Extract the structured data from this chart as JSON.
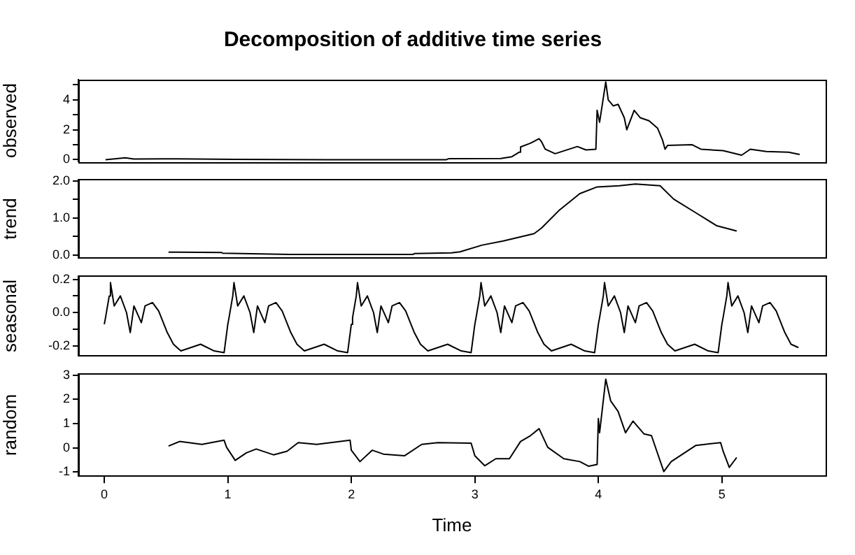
{
  "chart_data": [
    {
      "type": "line",
      "title": "Decomposition of additive time series",
      "ylabel": "observed",
      "tick_labels": "y",
      "xlim": [
        -0.21,
        5.84
      ],
      "xticks": [
        0,
        1,
        2,
        3,
        4,
        5
      ],
      "ylim": [
        -0.13,
        5.35
      ],
      "yticks": [
        0,
        {
          "value": 1,
          "label": null
        },
        2,
        {
          "value": 3,
          "label": null
        },
        4,
        {
          "value": 5,
          "label": null
        }
      ],
      "series": [
        {
          "color": "#000000",
          "x": [
            0.01,
            0.17,
            0.24,
            0.48,
            1.06,
            1.81,
            2.77,
            2.79,
            3.21,
            3.3,
            3.36,
            3.37,
            3.45,
            3.52,
            3.54,
            3.57,
            3.65,
            3.83,
            3.9,
            3.98,
            3.99,
            4.01,
            4.06,
            4.08,
            4.12,
            4.16,
            4.21,
            4.23,
            4.29,
            4.34,
            4.41,
            4.48,
            4.52,
            4.54,
            4.56,
            4.76,
            4.83,
            5.01,
            5.16,
            5.23,
            5.36,
            5.54,
            5.63
          ],
          "values": [
            0.0,
            0.12,
            0.04,
            0.06,
            0.02,
            0.0,
            0.0,
            0.07,
            0.08,
            0.2,
            0.5,
            0.85,
            1.1,
            1.4,
            1.2,
            0.7,
            0.4,
            0.88,
            0.65,
            0.7,
            3.3,
            2.5,
            5.2,
            4.0,
            3.6,
            3.7,
            2.8,
            2.0,
            3.3,
            2.8,
            2.6,
            2.1,
            1.3,
            0.7,
            0.95,
            1.0,
            0.7,
            0.6,
            0.3,
            0.7,
            0.55,
            0.5,
            0.35
          ]
        }
      ]
    },
    {
      "type": "line",
      "ylabel": "trend",
      "tick_labels": "y",
      "xlim": [
        -0.21,
        5.84
      ],
      "xticks": [
        0,
        1,
        2,
        3,
        4,
        5
      ],
      "ylim": [
        -0.08,
        2.04
      ],
      "yticks": [
        {
          "value": 0,
          "label": "0.0"
        },
        {
          "value": 0.5,
          "label": null
        },
        {
          "value": 1,
          "label": "1.0"
        },
        {
          "value": 1.5,
          "label": null
        },
        {
          "value": 2,
          "label": "2.0"
        }
      ],
      "series": [
        {
          "color": "#000000",
          "x": [
            0.52,
            0.95,
            0.96,
            1.5,
            2.5,
            2.51,
            2.81,
            2.88,
            3.06,
            3.23,
            3.48,
            3.54,
            3.68,
            3.85,
            3.99,
            4.17,
            4.3,
            4.5,
            4.61,
            4.79,
            4.96,
            5.12
          ],
          "values": [
            0.08,
            0.07,
            0.05,
            0.02,
            0.02,
            0.04,
            0.06,
            0.09,
            0.27,
            0.38,
            0.58,
            0.73,
            1.2,
            1.66,
            1.84,
            1.87,
            1.92,
            1.87,
            1.51,
            1.14,
            0.79,
            0.65
          ]
        }
      ]
    },
    {
      "type": "line",
      "ylabel": "seasonal",
      "tick_labels": "y",
      "xlim": [
        -0.21,
        5.84
      ],
      "xticks": [
        0,
        1,
        2,
        3,
        4,
        5
      ],
      "ylim": [
        -0.26,
        0.22
      ],
      "yticks": [
        {
          "value": -0.2,
          "label": "-0.2"
        },
        {
          "value": -0.1,
          "label": null
        },
        {
          "value": 0,
          "label": "0.0"
        },
        {
          "value": 0.1,
          "label": null
        },
        {
          "value": 0.2,
          "label": "0.2"
        }
      ],
      "series": [
        {
          "color": "#000000",
          "x": [
            0,
            0.01,
            0.04,
            0.05,
            0.08,
            0.13,
            0.18,
            0.21,
            0.24,
            0.3,
            0.33,
            0.39,
            0.44,
            0.51,
            0.56,
            0.62,
            0.78,
            0.89,
            0.97,
            1,
            1.01,
            1.04,
            1.05,
            1.08,
            1.13,
            1.18,
            1.21,
            1.24,
            1.3,
            1.33,
            1.39,
            1.44,
            1.51,
            1.56,
            1.62,
            1.78,
            1.89,
            1.97,
            2,
            2.01,
            2.04,
            2.05,
            2.08,
            2.13,
            2.18,
            2.21,
            2.24,
            2.3,
            2.33,
            2.39,
            2.44,
            2.51,
            2.56,
            2.62,
            2.78,
            2.89,
            2.97,
            3,
            3.01,
            3.04,
            3.05,
            3.08,
            3.13,
            3.18,
            3.21,
            3.24,
            3.3,
            3.33,
            3.39,
            3.44,
            3.51,
            3.56,
            3.62,
            3.78,
            3.89,
            3.97,
            4,
            4.01,
            4.04,
            4.05,
            4.08,
            4.13,
            4.18,
            4.21,
            4.24,
            4.3,
            4.33,
            4.39,
            4.44,
            4.51,
            4.56,
            4.62,
            4.78,
            4.89,
            4.97,
            5,
            5.01,
            5.04,
            5.05,
            5.08,
            5.13,
            5.18,
            5.21,
            5.24,
            5.3,
            5.33,
            5.39,
            5.44,
            5.51,
            5.56,
            5.62
          ],
          "values": [
            -0.07,
            -0.03,
            0.1,
            0.18,
            0.04,
            0.1,
            0.0,
            -0.12,
            0.04,
            -0.06,
            0.04,
            0.06,
            0.01,
            -0.12,
            -0.19,
            -0.23,
            -0.19,
            -0.23,
            -0.24,
            -0.07,
            -0.03,
            0.1,
            0.18,
            0.04,
            0.1,
            0.0,
            -0.12,
            0.04,
            -0.06,
            0.04,
            0.06,
            0.01,
            -0.12,
            -0.19,
            -0.23,
            -0.19,
            -0.23,
            -0.24,
            -0.07,
            -0.03,
            0.1,
            0.18,
            0.04,
            0.1,
            0.0,
            -0.12,
            0.04,
            -0.06,
            0.04,
            0.06,
            0.01,
            -0.12,
            -0.19,
            -0.23,
            -0.19,
            -0.23,
            -0.24,
            -0.07,
            -0.03,
            0.1,
            0.18,
            0.04,
            0.1,
            0.0,
            -0.12,
            0.04,
            -0.06,
            0.04,
            0.06,
            0.01,
            -0.12,
            -0.19,
            -0.23,
            -0.19,
            -0.23,
            -0.24,
            -0.07,
            -0.03,
            0.1,
            0.18,
            0.04,
            0.1,
            0.0,
            -0.12,
            0.04,
            -0.06,
            0.04,
            0.06,
            0.01,
            -0.12,
            -0.19,
            -0.23,
            -0.19,
            -0.23,
            -0.24,
            -0.07,
            -0.03,
            0.1,
            0.18,
            0.04,
            0.1,
            0.0,
            -0.12,
            0.04,
            -0.06,
            0.04,
            0.06,
            0.01,
            -0.12,
            -0.19,
            -0.21
          ]
        }
      ]
    },
    {
      "type": "line",
      "ylabel": "random",
      "xlabel": "Time",
      "xlim": [
        -0.21,
        5.84
      ],
      "xticks": [
        0,
        1,
        2,
        3,
        4,
        5
      ],
      "ylim": [
        -1.17,
        3.05
      ],
      "yticks": [
        -1,
        0,
        1,
        2,
        3
      ],
      "series": [
        {
          "color": "#000000",
          "x": [
            0.52,
            0.61,
            0.79,
            0.97,
            0.99,
            1.06,
            1.15,
            1.23,
            1.37,
            1.48,
            1.57,
            1.72,
            1.99,
            2.0,
            2.07,
            2.17,
            2.26,
            2.43,
            2.57,
            2.7,
            2.97,
            3.0,
            3.08,
            3.17,
            3.28,
            3.37,
            3.45,
            3.52,
            3.59,
            3.72,
            3.85,
            3.92,
            3.99,
            4.0,
            4.01,
            4.06,
            4.1,
            4.16,
            4.22,
            4.28,
            4.37,
            4.43,
            4.53,
            4.59,
            4.79,
            4.99,
            5.01,
            5.06,
            5.12
          ],
          "values": [
            0.07,
            0.26,
            0.14,
            0.31,
            0.02,
            -0.52,
            -0.21,
            -0.05,
            -0.29,
            -0.14,
            0.21,
            0.14,
            0.31,
            -0.1,
            -0.57,
            -0.1,
            -0.26,
            -0.33,
            0.14,
            0.21,
            0.19,
            -0.33,
            -0.74,
            -0.45,
            -0.45,
            0.26,
            0.5,
            0.79,
            0.02,
            -0.45,
            -0.57,
            -0.76,
            -0.69,
            1.21,
            0.62,
            2.83,
            1.93,
            1.5,
            0.62,
            1.1,
            0.57,
            0.5,
            -0.98,
            -0.57,
            0.1,
            0.21,
            -0.14,
            -0.81,
            -0.4
          ]
        }
      ]
    }
  ]
}
